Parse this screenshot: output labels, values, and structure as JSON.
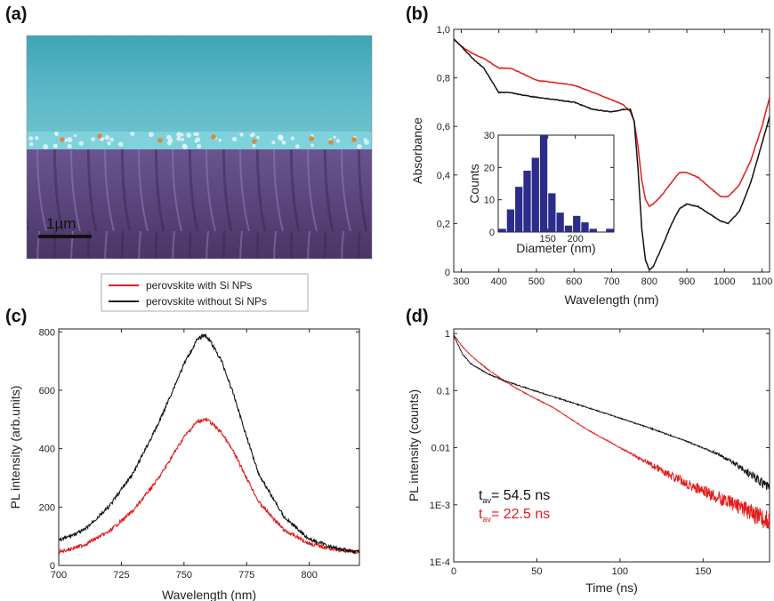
{
  "figure": {
    "panel_labels": [
      "(a)",
      "(b)",
      "(c)",
      "(d)"
    ],
    "scale_bar_label": "1µm",
    "legend": {
      "entries": [
        {
          "label": "perovskite with Si NPs",
          "color": "#e21b1b"
        },
        {
          "label": "perovskite without Si NPs",
          "color": "#111111"
        }
      ]
    },
    "colors": {
      "red": "#e21b1b",
      "black": "#111111",
      "hist_bar": "#2c2c8c",
      "film": "#4fb0c0",
      "substrate": "#5a3f78"
    }
  },
  "chart_data": [
    {
      "id": "b",
      "type": "line",
      "xlabel": "Wavelength (nm)",
      "ylabel": "Absorbance",
      "xlim": [
        280,
        1120
      ],
      "ylim": [
        0,
        1.0
      ],
      "xticks": [
        300,
        400,
        500,
        600,
        700,
        800,
        900,
        1000,
        1100
      ],
      "yticks": [
        0,
        0.2,
        0.4,
        0.6,
        0.8,
        1.0
      ],
      "yticklabels": [
        "0",
        "0,2",
        "0,4",
        "0,6",
        "0,8",
        "1,0"
      ],
      "series": [
        {
          "color": "red",
          "x": [
            280,
            300,
            330,
            360,
            380,
            400,
            430,
            460,
            500,
            550,
            600,
            650,
            700,
            730,
            750,
            760,
            770,
            780,
            790,
            800,
            810,
            830,
            860,
            880,
            900,
            930,
            960,
            990,
            1010,
            1040,
            1070,
            1100,
            1120
          ],
          "y": [
            0.96,
            0.93,
            0.9,
            0.88,
            0.86,
            0.84,
            0.84,
            0.82,
            0.79,
            0.78,
            0.77,
            0.74,
            0.71,
            0.69,
            0.66,
            0.62,
            0.52,
            0.38,
            0.3,
            0.27,
            0.28,
            0.31,
            0.37,
            0.41,
            0.41,
            0.39,
            0.35,
            0.31,
            0.31,
            0.36,
            0.46,
            0.6,
            0.72
          ]
        },
        {
          "color": "black",
          "x": [
            280,
            300,
            330,
            360,
            380,
            400,
            430,
            460,
            500,
            550,
            600,
            650,
            700,
            730,
            750,
            760,
            770,
            780,
            790,
            800,
            810,
            830,
            860,
            880,
            900,
            930,
            960,
            990,
            1010,
            1040,
            1070,
            1100,
            1120
          ],
          "y": [
            0.96,
            0.93,
            0.88,
            0.84,
            0.79,
            0.74,
            0.74,
            0.73,
            0.72,
            0.71,
            0.7,
            0.67,
            0.66,
            0.67,
            0.67,
            0.62,
            0.43,
            0.18,
            0.05,
            0.01,
            0.02,
            0.09,
            0.2,
            0.26,
            0.28,
            0.27,
            0.24,
            0.21,
            0.2,
            0.25,
            0.37,
            0.53,
            0.64
          ]
        }
      ]
    },
    {
      "id": "b-inset",
      "type": "bar",
      "xlabel": "Diameter (nm)",
      "ylabel": "Counts",
      "xlim": [
        60,
        270
      ],
      "ylim": [
        0,
        30
      ],
      "xticks": [
        150,
        200
      ],
      "yticks": [
        0,
        10,
        20,
        30
      ],
      "bin_width": 15,
      "bin_centers": [
        67.5,
        82.5,
        97.5,
        112.5,
        127.5,
        142.5,
        157.5,
        172.5,
        187.5,
        202.5,
        217.5,
        232.5,
        247.5,
        262.5
      ],
      "values": [
        1,
        7,
        14,
        19,
        23,
        30,
        12,
        6,
        2,
        5,
        3,
        1,
        0,
        1
      ]
    },
    {
      "id": "c",
      "type": "line",
      "xlabel": "Wavelength (nm)",
      "ylabel": "PL intensity (arb.units)",
      "xlim": [
        700,
        820
      ],
      "ylim": [
        0,
        810
      ],
      "xticks": [
        700,
        725,
        750,
        775,
        800
      ],
      "yticks": [
        0,
        200,
        400,
        600,
        800
      ],
      "series": [
        {
          "color": "red",
          "x": [
            700,
            710,
            720,
            730,
            740,
            745,
            750,
            755,
            758,
            760,
            765,
            770,
            775,
            780,
            790,
            800,
            810,
            820
          ],
          "y": [
            45,
            70,
            115,
            190,
            300,
            370,
            440,
            490,
            500,
            495,
            455,
            385,
            300,
            215,
            120,
            75,
            55,
            45
          ]
        },
        {
          "color": "black",
          "x": [
            700,
            710,
            720,
            730,
            740,
            745,
            750,
            755,
            758,
            760,
            765,
            770,
            775,
            780,
            790,
            800,
            810,
            820
          ],
          "y": [
            85,
            120,
            200,
            320,
            490,
            590,
            690,
            770,
            790,
            775,
            700,
            580,
            440,
            310,
            165,
            90,
            60,
            45
          ]
        }
      ]
    },
    {
      "id": "d",
      "type": "line",
      "log_y": true,
      "xlabel": "Time (ns)",
      "ylabel": "PL intensity (counts)",
      "xlim": [
        0,
        190
      ],
      "ylim": [
        0.0001,
        1.2
      ],
      "xticks": [
        0,
        50,
        100,
        150
      ],
      "yticks": [
        0.0001,
        0.001,
        0.01,
        0.1,
        1
      ],
      "yticklabels": [
        "1E-4",
        "1E-3",
        "0.01",
        "0.1",
        "1"
      ],
      "annotations": [
        {
          "text": "t",
          "sub": "av",
          "rest": "= 54.5 ns",
          "color": "black"
        },
        {
          "text": "t",
          "sub": "av",
          "rest": "= 22.5 ns",
          "color": "red"
        }
      ],
      "series": [
        {
          "color": "red",
          "x": [
            0,
            5,
            10,
            20,
            30,
            40,
            60,
            80,
            100,
            120,
            130,
            140,
            150,
            160,
            170,
            180,
            190
          ],
          "y": [
            0.95,
            0.6,
            0.42,
            0.24,
            0.15,
            0.1,
            0.05,
            0.021,
            0.01,
            0.0048,
            0.0033,
            0.0024,
            0.0017,
            0.0013,
            0.001,
            0.0007,
            0.0005
          ]
        },
        {
          "color": "black",
          "x": [
            0,
            5,
            10,
            20,
            30,
            40,
            60,
            80,
            100,
            120,
            140,
            160,
            170,
            180,
            190
          ],
          "y": [
            0.92,
            0.45,
            0.3,
            0.2,
            0.15,
            0.12,
            0.078,
            0.051,
            0.033,
            0.021,
            0.013,
            0.0075,
            0.005,
            0.0032,
            0.002
          ]
        }
      ]
    }
  ]
}
